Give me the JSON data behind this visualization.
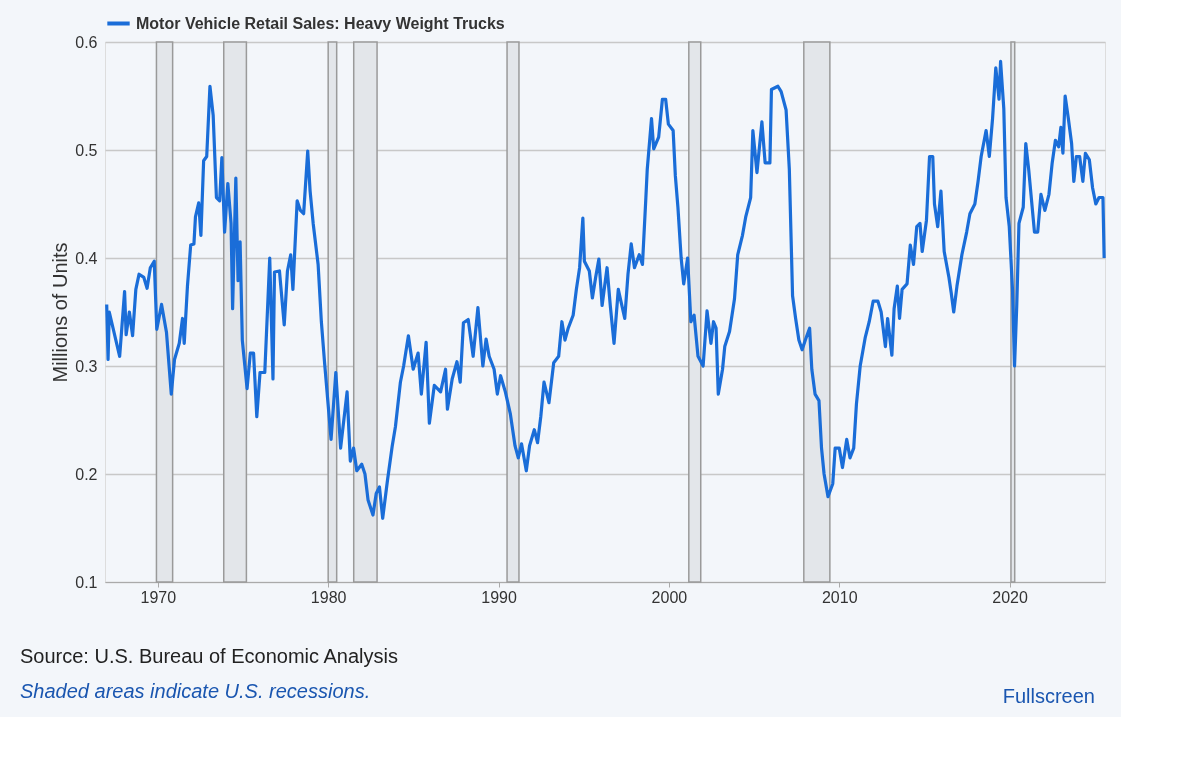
{
  "chart_data": {
    "type": "line",
    "ylabel": "Millions of Units",
    "legend": "top left",
    "grid": "y",
    "marker": "none",
    "line_style": "solid",
    "xlim": [
      1966.9,
      2025.6
    ],
    "xticks": [
      1970,
      1980,
      1990,
      2000,
      2010,
      2020
    ],
    "ylim": [
      0.1,
      0.6
    ],
    "yticks": [
      0.1,
      0.2,
      0.3,
      0.4,
      0.5,
      0.6
    ],
    "bands": [
      {
        "axis": "x",
        "from": 1969.92,
        "to": 1970.87,
        "color": "#e3e6ea"
      },
      {
        "axis": "x",
        "from": 1973.87,
        "to": 1975.2,
        "color": "#e3e6ea"
      },
      {
        "axis": "x",
        "from": 1980.0,
        "to": 1980.5,
        "color": "#e3e6ea"
      },
      {
        "axis": "x",
        "from": 1981.5,
        "to": 1982.87,
        "color": "#e3e6ea"
      },
      {
        "axis": "x",
        "from": 1990.5,
        "to": 1991.2,
        "color": "#e3e6ea"
      },
      {
        "axis": "x",
        "from": 2001.17,
        "to": 2001.87,
        "color": "#e3e6ea"
      },
      {
        "axis": "x",
        "from": 2007.92,
        "to": 2009.45,
        "color": "#e3e6ea"
      },
      {
        "axis": "x",
        "from": 2020.08,
        "to": 2020.3,
        "color": "#e3e6ea"
      }
    ],
    "annotations": [
      "Source: U.S. Bureau of Economic Analysis",
      "Shaded areas indicate U.S. recessions.",
      "Fullscreen"
    ],
    "series": [
      {
        "name": "Motor Vehicle Retail Sales: Heavy Weight Trucks",
        "color": "#1a6dd8",
        "x": [
          1967.0,
          1967.08,
          1967.15,
          1967.76,
          1968.05,
          1968.14,
          1968.33,
          1968.52,
          1968.71,
          1968.9,
          1969.18,
          1969.37,
          1969.56,
          1969.79,
          1969.94,
          1970.22,
          1970.51,
          1970.79,
          1970.98,
          1971.26,
          1971.45,
          1971.55,
          1971.74,
          1971.93,
          1972.12,
          1972.21,
          1972.4,
          1972.53,
          1972.69,
          1972.87,
          1973.06,
          1973.25,
          1973.44,
          1973.63,
          1973.76,
          1973.92,
          1974.11,
          1974.3,
          1974.39,
          1974.58,
          1974.71,
          1974.83,
          1974.96,
          1975.24,
          1975.43,
          1975.62,
          1975.81,
          1976.0,
          1976.28,
          1976.57,
          1976.76,
          1976.85,
          1977.14,
          1977.42,
          1977.61,
          1977.8,
          1977.93,
          1978.18,
          1978.37,
          1978.56,
          1978.8,
          1978.94,
          1979.12,
          1979.41,
          1979.6,
          1979.79,
          1980.17,
          1980.45,
          1980.73,
          1981.11,
          1981.3,
          1981.49,
          1981.68,
          1981.97,
          1982.16,
          1982.34,
          1982.63,
          1982.82,
          1983.01,
          1983.2,
          1983.48,
          1983.76,
          1983.95,
          1984.24,
          1984.43,
          1984.71,
          1984.99,
          1985.28,
          1985.47,
          1985.75,
          1985.94,
          1986.23,
          1986.6,
          1986.89,
          1987.0,
          1987.28,
          1987.56,
          1987.75,
          1987.94,
          1988.22,
          1988.51,
          1988.79,
          1989.08,
          1989.27,
          1989.45,
          1989.74,
          1989.93,
          1990.12,
          1990.4,
          1990.69,
          1990.97,
          1991.16,
          1991.35,
          1991.63,
          1991.82,
          1992.1,
          1992.29,
          1992.48,
          1992.67,
          1992.96,
          1993.24,
          1993.53,
          1993.72,
          1993.9,
          1994.09,
          1994.38,
          1994.57,
          1994.76,
          1994.95,
          1995.04,
          1995.33,
          1995.51,
          1995.7,
          1995.89,
          1996.08,
          1996.37,
          1996.56,
          1996.78,
          1997.03,
          1997.41,
          1997.6,
          1997.79,
          1997.98,
          1998.26,
          1998.45,
          1998.64,
          1998.73,
          1998.98,
          1999.11,
          1999.4,
          1999.62,
          1999.81,
          1999.97,
          2000.25,
          2000.38,
          2000.53,
          2000.72,
          2000.87,
          2001.1,
          2001.29,
          2001.48,
          2001.71,
          2002.01,
          2002.24,
          2002.47,
          2002.62,
          2002.77,
          2002.9,
          2003.15,
          2003.28,
          2003.56,
          2003.85,
          2004.04,
          2004.32,
          2004.51,
          2004.8,
          2004.93,
          2005.17,
          2005.46,
          2005.65,
          2005.93,
          2006.02,
          2006.4,
          2006.59,
          2006.88,
          2007.07,
          2007.26,
          2007.44,
          2007.63,
          2007.82,
          2008.01,
          2008.26,
          2008.39,
          2008.58,
          2008.81,
          2008.96,
          2009.11,
          2009.34,
          2009.62,
          2009.76,
          2010.0,
          2010.19,
          2010.44,
          2010.63,
          2010.85,
          2011.01,
          2011.23,
          2011.52,
          2011.76,
          2011.99,
          2012.27,
          2012.46,
          2012.71,
          2012.84,
          2013.09,
          2013.22,
          2013.41,
          2013.54,
          2013.69,
          2013.98,
          2014.17,
          2014.36,
          2014.55,
          2014.74,
          2014.87,
          2015.12,
          2015.3,
          2015.49,
          2015.59,
          2015.78,
          2015.97,
          2016.16,
          2016.44,
          2016.57,
          2016.72,
          2016.91,
          2017.2,
          2017.48,
          2017.67,
          2017.96,
          2018.15,
          2018.33,
          2018.62,
          2018.81,
          2019.0,
          2019.19,
          2019.38,
          2019.47,
          2019.66,
          2019.79,
          2019.98,
          2020.17,
          2020.29,
          2020.42,
          2020.55,
          2020.8,
          2020.95,
          2021.12,
          2021.46,
          2021.65,
          2021.84,
          2022.07,
          2022.31,
          2022.5,
          2022.69,
          2022.88,
          2023.01,
          2023.13,
          2023.26,
          2023.45,
          2023.64,
          2023.77,
          2023.92,
          2024.11,
          2024.3,
          2024.45,
          2024.68,
          2024.87,
          2025.06,
          2025.25,
          2025.48,
          2025.55
        ],
        "values": [
          0.357,
          0.306,
          0.35,
          0.309,
          0.369,
          0.329,
          0.35,
          0.328,
          0.371,
          0.385,
          0.382,
          0.372,
          0.391,
          0.397,
          0.334,
          0.357,
          0.331,
          0.274,
          0.306,
          0.321,
          0.344,
          0.321,
          0.374,
          0.412,
          0.413,
          0.438,
          0.451,
          0.421,
          0.49,
          0.494,
          0.559,
          0.532,
          0.456,
          0.453,
          0.493,
          0.424,
          0.469,
          0.432,
          0.353,
          0.474,
          0.379,
          0.415,
          0.324,
          0.279,
          0.312,
          0.312,
          0.253,
          0.294,
          0.294,
          0.4,
          0.288,
          0.387,
          0.388,
          0.338,
          0.388,
          0.403,
          0.371,
          0.453,
          0.444,
          0.441,
          0.499,
          0.462,
          0.432,
          0.394,
          0.341,
          0.303,
          0.232,
          0.294,
          0.224,
          0.276,
          0.212,
          0.224,
          0.203,
          0.209,
          0.2,
          0.176,
          0.162,
          0.182,
          0.188,
          0.159,
          0.194,
          0.226,
          0.244,
          0.285,
          0.3,
          0.328,
          0.297,
          0.312,
          0.274,
          0.322,
          0.247,
          0.282,
          0.276,
          0.297,
          0.26,
          0.288,
          0.304,
          0.285,
          0.34,
          0.343,
          0.309,
          0.354,
          0.3,
          0.325,
          0.309,
          0.297,
          0.274,
          0.291,
          0.276,
          0.256,
          0.226,
          0.215,
          0.228,
          0.203,
          0.226,
          0.241,
          0.229,
          0.253,
          0.285,
          0.266,
          0.303,
          0.309,
          0.341,
          0.324,
          0.335,
          0.347,
          0.371,
          0.391,
          0.437,
          0.397,
          0.388,
          0.363,
          0.382,
          0.399,
          0.356,
          0.391,
          0.356,
          0.321,
          0.371,
          0.344,
          0.385,
          0.413,
          0.391,
          0.403,
          0.394,
          0.453,
          0.482,
          0.529,
          0.501,
          0.512,
          0.547,
          0.547,
          0.524,
          0.518,
          0.476,
          0.447,
          0.4,
          0.376,
          0.4,
          0.341,
          0.347,
          0.309,
          0.3,
          0.351,
          0.321,
          0.341,
          0.335,
          0.274,
          0.297,
          0.318,
          0.332,
          0.362,
          0.403,
          0.421,
          0.438,
          0.456,
          0.518,
          0.479,
          0.526,
          0.488,
          0.488,
          0.556,
          0.559,
          0.554,
          0.537,
          0.482,
          0.365,
          0.344,
          0.324,
          0.315,
          0.324,
          0.335,
          0.297,
          0.274,
          0.268,
          0.224,
          0.2,
          0.179,
          0.191,
          0.224,
          0.224,
          0.206,
          0.232,
          0.215,
          0.224,
          0.265,
          0.3,
          0.326,
          0.341,
          0.36,
          0.36,
          0.35,
          0.318,
          0.344,
          0.31,
          0.353,
          0.374,
          0.344,
          0.371,
          0.376,
          0.412,
          0.394,
          0.429,
          0.432,
          0.406,
          0.435,
          0.494,
          0.494,
          0.45,
          0.429,
          0.462,
          0.406,
          0.382,
          0.368,
          0.35,
          0.374,
          0.403,
          0.424,
          0.441,
          0.45,
          0.471,
          0.494,
          0.518,
          0.494,
          0.529,
          0.576,
          0.547,
          0.582,
          0.538,
          0.456,
          0.429,
          0.371,
          0.3,
          0.356,
          0.432,
          0.447,
          0.506,
          0.482,
          0.424,
          0.424,
          0.459,
          0.444,
          0.459,
          0.488,
          0.509,
          0.503,
          0.521,
          0.497,
          0.55,
          0.529,
          0.506,
          0.471,
          0.494,
          0.494,
          0.471,
          0.497,
          0.491,
          0.465,
          0.45,
          0.456,
          0.456,
          0.4
        ]
      }
    ]
  }
}
